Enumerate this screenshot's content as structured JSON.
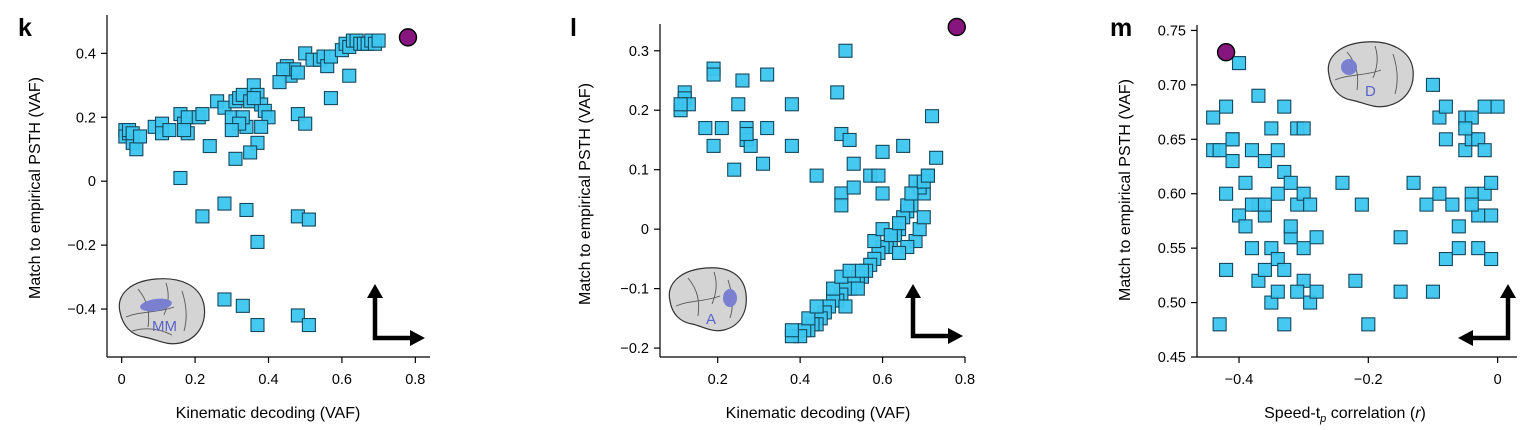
{
  "colors": {
    "marker_fill": "#3cc6ef",
    "marker_edge": "#14485e",
    "model_point": "#86157e"
  },
  "panels": [
    {
      "letter": "k",
      "region_label": "MM",
      "arrow": "up-right",
      "brain_icon": "monkey-brain-icon",
      "chart_data": {
        "type": "scatter",
        "xlabel": "Kinematic decoding (VAF)",
        "ylabel": "Match to empirical PSTH (VAF)",
        "xlim": [
          -0.04,
          0.84
        ],
        "ylim": [
          -0.55,
          0.52
        ],
        "xticks": [
          0,
          0.2,
          0.4,
          0.6,
          0.8
        ],
        "xtick_labels": [
          "0",
          "0.2",
          "0.4",
          "0.6",
          "0.8"
        ],
        "yticks": [
          -0.4,
          -0.2,
          0,
          0.2,
          0.4
        ],
        "ytick_labels": [
          "−0.4",
          "−0.2",
          "0",
          "0.2",
          "0.4"
        ],
        "model_point": [
          0.78,
          0.45
        ],
        "points": [
          [
            0.01,
            0.16
          ],
          [
            0.01,
            0.14
          ],
          [
            0.02,
            0.15
          ],
          [
            0.03,
            0.12
          ],
          [
            0.04,
            0.1
          ],
          [
            0.02,
            0.16
          ],
          [
            0.03,
            0.15
          ],
          [
            0.05,
            0.14
          ],
          [
            0.09,
            0.17
          ],
          [
            0.11,
            0.18
          ],
          [
            0.11,
            0.15
          ],
          [
            0.13,
            0.16
          ],
          [
            0.16,
            0.21
          ],
          [
            0.17,
            0.18
          ],
          [
            0.18,
            0.2
          ],
          [
            0.18,
            0.15
          ],
          [
            0.17,
            0.16
          ],
          [
            0.21,
            0.2
          ],
          [
            0.22,
            0.21
          ],
          [
            0.24,
            0.11
          ],
          [
            0.26,
            0.25
          ],
          [
            0.28,
            0.23
          ],
          [
            0.3,
            0.2
          ],
          [
            0.31,
            0.25
          ],
          [
            0.32,
            0.26
          ],
          [
            0.33,
            0.27
          ],
          [
            0.35,
            0.25
          ],
          [
            0.36,
            0.3
          ],
          [
            0.37,
            0.27
          ],
          [
            0.38,
            0.24
          ],
          [
            0.39,
            0.22
          ],
          [
            0.4,
            0.2
          ],
          [
            0.36,
            0.26
          ],
          [
            0.34,
            0.17
          ],
          [
            0.33,
            0.2
          ],
          [
            0.38,
            0.17
          ],
          [
            0.37,
            0.12
          ],
          [
            0.32,
            0.18
          ],
          [
            0.3,
            0.16
          ],
          [
            0.31,
            0.07
          ],
          [
            0.35,
            0.09
          ],
          [
            0.45,
            0.36
          ],
          [
            0.46,
            0.33
          ],
          [
            0.47,
            0.35
          ],
          [
            0.48,
            0.34
          ],
          [
            0.44,
            0.35
          ],
          [
            0.43,
            0.31
          ],
          [
            0.5,
            0.4
          ],
          [
            0.52,
            0.38
          ],
          [
            0.54,
            0.38
          ],
          [
            0.55,
            0.39
          ],
          [
            0.56,
            0.36
          ],
          [
            0.57,
            0.39
          ],
          [
            0.6,
            0.41
          ],
          [
            0.61,
            0.43
          ],
          [
            0.62,
            0.42
          ],
          [
            0.63,
            0.44
          ],
          [
            0.64,
            0.44
          ],
          [
            0.65,
            0.43
          ],
          [
            0.66,
            0.43
          ],
          [
            0.67,
            0.43
          ],
          [
            0.68,
            0.44
          ],
          [
            0.69,
            0.43
          ],
          [
            0.7,
            0.44
          ],
          [
            0.62,
            0.33
          ],
          [
            0.57,
            0.26
          ],
          [
            0.48,
            0.21
          ],
          [
            0.5,
            0.18
          ],
          [
            0.16,
            0.01
          ],
          [
            0.22,
            -0.11
          ],
          [
            0.28,
            -0.07
          ],
          [
            0.34,
            -0.09
          ],
          [
            0.37,
            -0.19
          ],
          [
            0.48,
            -0.11
          ],
          [
            0.51,
            -0.12
          ],
          [
            0.28,
            -0.37
          ],
          [
            0.33,
            -0.39
          ],
          [
            0.37,
            -0.45
          ],
          [
            0.48,
            -0.42
          ],
          [
            0.51,
            -0.45
          ]
        ]
      }
    },
    {
      "letter": "l",
      "region_label": "A",
      "arrow": "up-right",
      "brain_icon": "monkey-brain-icon",
      "chart_data": {
        "type": "scatter",
        "xlabel": "Kinematic decoding (VAF)",
        "ylabel": "Match to empirical PSTH (VAF)",
        "xlim": [
          0.06,
          0.8
        ],
        "ylim": [
          -0.215,
          0.345
        ],
        "xticks": [
          0.2,
          0.4,
          0.6,
          0.8
        ],
        "xtick_labels": [
          "0.2",
          "0.4",
          "0.6",
          "0.8"
        ],
        "yticks": [
          -0.2,
          -0.1,
          0,
          0.1,
          0.2,
          0.3
        ],
        "ytick_labels": [
          "−0.2",
          "−0.1",
          "0",
          "0.1",
          "0.2",
          "0.3"
        ],
        "model_point": [
          0.78,
          0.34
        ],
        "points": [
          [
            0.11,
            0.2
          ],
          [
            0.12,
            0.23
          ],
          [
            0.12,
            0.22
          ],
          [
            0.13,
            0.21
          ],
          [
            0.11,
            0.21
          ],
          [
            0.19,
            0.27
          ],
          [
            0.19,
            0.26
          ],
          [
            0.21,
            0.17
          ],
          [
            0.19,
            0.14
          ],
          [
            0.17,
            0.17
          ],
          [
            0.24,
            0.1
          ],
          [
            0.25,
            0.21
          ],
          [
            0.27,
            0.17
          ],
          [
            0.27,
            0.15
          ],
          [
            0.28,
            0.14
          ],
          [
            0.27,
            0.16
          ],
          [
            0.26,
            0.25
          ],
          [
            0.31,
            0.11
          ],
          [
            0.32,
            0.26
          ],
          [
            0.32,
            0.17
          ],
          [
            0.38,
            0.21
          ],
          [
            0.38,
            0.14
          ],
          [
            0.44,
            0.09
          ],
          [
            0.49,
            0.23
          ],
          [
            0.5,
            0.16
          ],
          [
            0.52,
            0.15
          ],
          [
            0.5,
            0.06
          ],
          [
            0.53,
            0.11
          ],
          [
            0.53,
            0.07
          ],
          [
            0.5,
            0.04
          ],
          [
            0.51,
            0.3
          ],
          [
            0.57,
            0.09
          ],
          [
            0.59,
            0.09
          ],
          [
            0.6,
            0.13
          ],
          [
            0.65,
            0.14
          ],
          [
            0.6,
            0.06
          ],
          [
            0.72,
            0.19
          ],
          [
            0.73,
            0.12
          ],
          [
            0.71,
            0.09
          ],
          [
            0.7,
            0.06
          ],
          [
            0.69,
            0.07
          ],
          [
            0.68,
            0.08
          ],
          [
            0.67,
            0.04
          ],
          [
            0.66,
            0.03
          ],
          [
            0.65,
            0.02
          ],
          [
            0.64,
            0.0
          ],
          [
            0.63,
            -0.01
          ],
          [
            0.62,
            -0.02
          ],
          [
            0.61,
            -0.03
          ],
          [
            0.6,
            -0.03
          ],
          [
            0.59,
            -0.04
          ],
          [
            0.58,
            -0.05
          ],
          [
            0.57,
            -0.06
          ],
          [
            0.56,
            -0.07
          ],
          [
            0.55,
            -0.08
          ],
          [
            0.54,
            -0.08
          ],
          [
            0.53,
            -0.09
          ],
          [
            0.52,
            -0.1
          ],
          [
            0.51,
            -0.1
          ],
          [
            0.5,
            -0.11
          ],
          [
            0.49,
            -0.12
          ],
          [
            0.48,
            -0.12
          ],
          [
            0.47,
            -0.13
          ],
          [
            0.46,
            -0.14
          ],
          [
            0.45,
            -0.15
          ],
          [
            0.44,
            -0.16
          ],
          [
            0.43,
            -0.16
          ],
          [
            0.42,
            -0.17
          ],
          [
            0.41,
            -0.17
          ],
          [
            0.4,
            -0.18
          ],
          [
            0.38,
            -0.18
          ],
          [
            0.38,
            -0.17
          ],
          [
            0.42,
            -0.15
          ],
          [
            0.44,
            -0.13
          ],
          [
            0.48,
            -0.1
          ],
          [
            0.5,
            -0.08
          ],
          [
            0.52,
            -0.07
          ],
          [
            0.55,
            -0.07
          ],
          [
            0.58,
            -0.02
          ],
          [
            0.6,
            0.0
          ],
          [
            0.62,
            -0.01
          ],
          [
            0.64,
            0.01
          ],
          [
            0.66,
            0.04
          ],
          [
            0.67,
            0.06
          ],
          [
            0.7,
            0.08
          ],
          [
            0.71,
            0.09
          ],
          [
            0.68,
            -0.02
          ],
          [
            0.66,
            -0.03
          ],
          [
            0.64,
            -0.04
          ],
          [
            0.69,
            0.0
          ],
          [
            0.7,
            0.02
          ],
          [
            0.54,
            -0.1
          ],
          [
            0.51,
            -0.13
          ]
        ]
      }
    },
    {
      "letter": "m",
      "region_label": "D",
      "arrow": "up-left",
      "brain_icon": "monkey-brain-icon",
      "chart_data": {
        "type": "scatter",
        "xlabel": "Speed-t",
        "xlabel_subscript": "p",
        "xlabel_suffix": " correlation (",
        "xlabel_italic": "r",
        "xlabel_end": ")",
        "ylabel": "Match to empirical PSTH (VAF)",
        "xlim": [
          -0.465,
          0.03
        ],
        "ylim": [
          0.45,
          0.755
        ],
        "xticks": [
          -0.4,
          -0.2,
          0
        ],
        "xtick_labels": [
          "−0.4",
          "−0.2",
          "0"
        ],
        "yticks": [
          0.45,
          0.5,
          0.55,
          0.6,
          0.65,
          0.7,
          0.75
        ],
        "ytick_labels": [
          "0.45",
          "0.50",
          "0.55",
          "0.60",
          "0.65",
          "0.70",
          "0.75"
        ],
        "model_point": [
          -0.42,
          0.73
        ],
        "points": [
          [
            -0.44,
            0.67
          ],
          [
            -0.44,
            0.64
          ],
          [
            -0.43,
            0.64
          ],
          [
            -0.42,
            0.68
          ],
          [
            -0.41,
            0.65
          ],
          [
            -0.41,
            0.65
          ],
          [
            -0.41,
            0.63
          ],
          [
            -0.4,
            0.72
          ],
          [
            -0.42,
            0.6
          ],
          [
            -0.4,
            0.58
          ],
          [
            -0.39,
            0.61
          ],
          [
            -0.39,
            0.57
          ],
          [
            -0.38,
            0.64
          ],
          [
            -0.37,
            0.69
          ],
          [
            -0.38,
            0.55
          ],
          [
            -0.37,
            0.59
          ],
          [
            -0.36,
            0.58
          ],
          [
            -0.37,
            0.52
          ],
          [
            -0.36,
            0.59
          ],
          [
            -0.35,
            0.66
          ],
          [
            -0.35,
            0.55
          ],
          [
            -0.35,
            0.5
          ],
          [
            -0.34,
            0.6
          ],
          [
            -0.34,
            0.64
          ],
          [
            -0.34,
            0.51
          ],
          [
            -0.34,
            0.54
          ],
          [
            -0.33,
            0.68
          ],
          [
            -0.33,
            0.62
          ],
          [
            -0.32,
            0.61
          ],
          [
            -0.32,
            0.56
          ],
          [
            -0.32,
            0.57
          ],
          [
            -0.31,
            0.66
          ],
          [
            -0.31,
            0.59
          ],
          [
            -0.3,
            0.6
          ],
          [
            -0.3,
            0.52
          ],
          [
            -0.3,
            0.55
          ],
          [
            -0.31,
            0.51
          ],
          [
            -0.29,
            0.59
          ],
          [
            -0.29,
            0.5
          ],
          [
            -0.28,
            0.56
          ],
          [
            -0.28,
            0.51
          ],
          [
            -0.33,
            0.48
          ],
          [
            -0.42,
            0.53
          ],
          [
            -0.43,
            0.48
          ],
          [
            -0.36,
            0.53
          ],
          [
            -0.38,
            0.59
          ],
          [
            -0.36,
            0.63
          ],
          [
            -0.33,
            0.53
          ],
          [
            -0.3,
            0.66
          ],
          [
            -0.24,
            0.61
          ],
          [
            -0.22,
            0.52
          ],
          [
            -0.21,
            0.59
          ],
          [
            -0.2,
            0.48
          ],
          [
            -0.15,
            0.56
          ],
          [
            -0.15,
            0.51
          ],
          [
            -0.13,
            0.61
          ],
          [
            -0.11,
            0.59
          ],
          [
            -0.1,
            0.7
          ],
          [
            -0.1,
            0.51
          ],
          [
            -0.09,
            0.67
          ],
          [
            -0.09,
            0.6
          ],
          [
            -0.08,
            0.54
          ],
          [
            -0.08,
            0.68
          ],
          [
            -0.08,
            0.65
          ],
          [
            -0.07,
            0.59
          ],
          [
            -0.06,
            0.57
          ],
          [
            -0.05,
            0.67
          ],
          [
            -0.05,
            0.64
          ],
          [
            -0.04,
            0.67
          ],
          [
            -0.04,
            0.65
          ],
          [
            -0.04,
            0.6
          ],
          [
            -0.03,
            0.65
          ],
          [
            -0.03,
            0.58
          ],
          [
            -0.02,
            0.6
          ],
          [
            -0.02,
            0.64
          ],
          [
            -0.02,
            0.68
          ],
          [
            -0.01,
            0.58
          ],
          [
            -0.01,
            0.61
          ],
          [
            -0.01,
            0.54
          ],
          [
            0.0,
            0.68
          ],
          [
            -0.05,
            0.66
          ],
          [
            -0.06,
            0.55
          ],
          [
            -0.04,
            0.59
          ],
          [
            -0.03,
            0.55
          ]
        ]
      }
    }
  ]
}
